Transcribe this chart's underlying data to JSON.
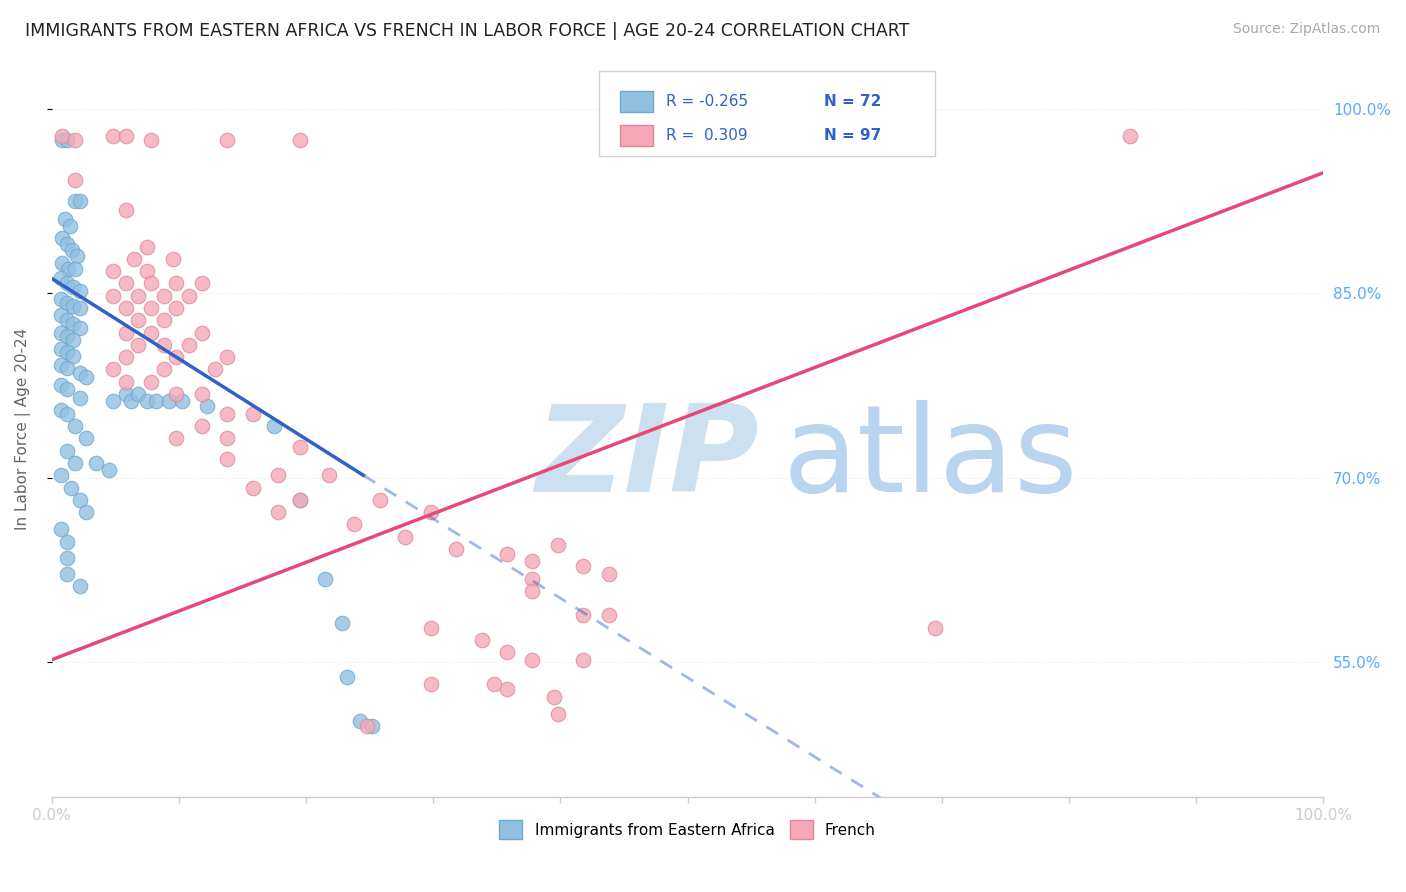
{
  "title": "IMMIGRANTS FROM EASTERN AFRICA VS FRENCH IN LABOR FORCE | AGE 20-24 CORRELATION CHART",
  "source": "Source: ZipAtlas.com",
  "ylabel": "In Labor Force | Age 20-24",
  "y_tick_labels": [
    "55.0%",
    "70.0%",
    "85.0%",
    "100.0%"
  ],
  "y_tick_positions": [
    0.55,
    0.7,
    0.85,
    1.0
  ],
  "ylim": [
    0.44,
    1.04
  ],
  "xlim": [
    0.0,
    1.0
  ],
  "blue_scatter": [
    [
      0.008,
      0.975
    ],
    [
      0.012,
      0.975
    ],
    [
      0.018,
      0.925
    ],
    [
      0.022,
      0.925
    ],
    [
      0.01,
      0.91
    ],
    [
      0.014,
      0.905
    ],
    [
      0.008,
      0.895
    ],
    [
      0.012,
      0.89
    ],
    [
      0.016,
      0.885
    ],
    [
      0.02,
      0.88
    ],
    [
      0.008,
      0.875
    ],
    [
      0.013,
      0.87
    ],
    [
      0.018,
      0.87
    ],
    [
      0.007,
      0.862
    ],
    [
      0.012,
      0.858
    ],
    [
      0.017,
      0.855
    ],
    [
      0.022,
      0.852
    ],
    [
      0.007,
      0.845
    ],
    [
      0.012,
      0.842
    ],
    [
      0.017,
      0.84
    ],
    [
      0.022,
      0.838
    ],
    [
      0.007,
      0.832
    ],
    [
      0.012,
      0.828
    ],
    [
      0.017,
      0.825
    ],
    [
      0.022,
      0.822
    ],
    [
      0.007,
      0.818
    ],
    [
      0.012,
      0.815
    ],
    [
      0.017,
      0.812
    ],
    [
      0.007,
      0.805
    ],
    [
      0.012,
      0.802
    ],
    [
      0.017,
      0.799
    ],
    [
      0.007,
      0.792
    ],
    [
      0.012,
      0.789
    ],
    [
      0.022,
      0.785
    ],
    [
      0.027,
      0.782
    ],
    [
      0.007,
      0.775
    ],
    [
      0.012,
      0.772
    ],
    [
      0.022,
      0.765
    ],
    [
      0.007,
      0.755
    ],
    [
      0.012,
      0.752
    ],
    [
      0.018,
      0.742
    ],
    [
      0.027,
      0.732
    ],
    [
      0.012,
      0.722
    ],
    [
      0.018,
      0.712
    ],
    [
      0.007,
      0.702
    ],
    [
      0.015,
      0.692
    ],
    [
      0.022,
      0.682
    ],
    [
      0.027,
      0.672
    ],
    [
      0.007,
      0.658
    ],
    [
      0.012,
      0.648
    ],
    [
      0.012,
      0.635
    ],
    [
      0.012,
      0.622
    ],
    [
      0.022,
      0.612
    ],
    [
      0.035,
      0.712
    ],
    [
      0.045,
      0.706
    ],
    [
      0.048,
      0.762
    ],
    [
      0.058,
      0.768
    ],
    [
      0.062,
      0.762
    ],
    [
      0.068,
      0.768
    ],
    [
      0.075,
      0.762
    ],
    [
      0.082,
      0.762
    ],
    [
      0.092,
      0.762
    ],
    [
      0.102,
      0.762
    ],
    [
      0.122,
      0.758
    ],
    [
      0.175,
      0.742
    ],
    [
      0.195,
      0.682
    ],
    [
      0.215,
      0.618
    ],
    [
      0.228,
      0.582
    ],
    [
      0.232,
      0.538
    ],
    [
      0.242,
      0.502
    ],
    [
      0.252,
      0.498
    ]
  ],
  "pink_scatter": [
    [
      0.008,
      0.978
    ],
    [
      0.018,
      0.975
    ],
    [
      0.048,
      0.978
    ],
    [
      0.058,
      0.978
    ],
    [
      0.078,
      0.975
    ],
    [
      0.138,
      0.975
    ],
    [
      0.195,
      0.975
    ],
    [
      0.848,
      0.978
    ],
    [
      0.018,
      0.942
    ],
    [
      0.058,
      0.918
    ],
    [
      0.075,
      0.888
    ],
    [
      0.065,
      0.878
    ],
    [
      0.095,
      0.878
    ],
    [
      0.048,
      0.868
    ],
    [
      0.075,
      0.868
    ],
    [
      0.058,
      0.858
    ],
    [
      0.078,
      0.858
    ],
    [
      0.098,
      0.858
    ],
    [
      0.118,
      0.858
    ],
    [
      0.048,
      0.848
    ],
    [
      0.068,
      0.848
    ],
    [
      0.088,
      0.848
    ],
    [
      0.108,
      0.848
    ],
    [
      0.058,
      0.838
    ],
    [
      0.078,
      0.838
    ],
    [
      0.098,
      0.838
    ],
    [
      0.068,
      0.828
    ],
    [
      0.088,
      0.828
    ],
    [
      0.058,
      0.818
    ],
    [
      0.078,
      0.818
    ],
    [
      0.118,
      0.818
    ],
    [
      0.068,
      0.808
    ],
    [
      0.088,
      0.808
    ],
    [
      0.108,
      0.808
    ],
    [
      0.058,
      0.798
    ],
    [
      0.098,
      0.798
    ],
    [
      0.138,
      0.798
    ],
    [
      0.048,
      0.788
    ],
    [
      0.088,
      0.788
    ],
    [
      0.128,
      0.788
    ],
    [
      0.058,
      0.778
    ],
    [
      0.078,
      0.778
    ],
    [
      0.098,
      0.768
    ],
    [
      0.118,
      0.768
    ],
    [
      0.138,
      0.752
    ],
    [
      0.158,
      0.752
    ],
    [
      0.118,
      0.742
    ],
    [
      0.098,
      0.732
    ],
    [
      0.138,
      0.732
    ],
    [
      0.195,
      0.725
    ],
    [
      0.138,
      0.715
    ],
    [
      0.178,
      0.702
    ],
    [
      0.218,
      0.702
    ],
    [
      0.158,
      0.692
    ],
    [
      0.195,
      0.682
    ],
    [
      0.258,
      0.682
    ],
    [
      0.178,
      0.672
    ],
    [
      0.298,
      0.672
    ],
    [
      0.238,
      0.662
    ],
    [
      0.278,
      0.652
    ],
    [
      0.318,
      0.642
    ],
    [
      0.358,
      0.638
    ],
    [
      0.378,
      0.632
    ],
    [
      0.378,
      0.618
    ],
    [
      0.398,
      0.645
    ],
    [
      0.418,
      0.628
    ],
    [
      0.438,
      0.622
    ],
    [
      0.378,
      0.608
    ],
    [
      0.418,
      0.588
    ],
    [
      0.438,
      0.588
    ],
    [
      0.298,
      0.578
    ],
    [
      0.338,
      0.568
    ],
    [
      0.358,
      0.558
    ],
    [
      0.378,
      0.552
    ],
    [
      0.418,
      0.552
    ],
    [
      0.358,
      0.528
    ],
    [
      0.395,
      0.522
    ],
    [
      0.298,
      0.532
    ],
    [
      0.348,
      0.532
    ],
    [
      0.695,
      0.578
    ],
    [
      0.398,
      0.508
    ],
    [
      0.248,
      0.498
    ]
  ],
  "blue_line_solid": [
    [
      0.0,
      0.862
    ],
    [
      0.245,
      0.702
    ]
  ],
  "blue_line_dashed": [
    [
      0.245,
      0.702
    ],
    [
      1.0,
      0.215
    ]
  ],
  "pink_line": [
    [
      0.0,
      0.552
    ],
    [
      1.0,
      0.948
    ]
  ],
  "background_color": "#ffffff",
  "grid_color": "#e8e8e8",
  "scatter_blue_color": "#92c0e0",
  "scatter_blue_edge": "#6aaad0",
  "scatter_pink_color": "#f4a8b8",
  "scatter_pink_edge": "#e08898",
  "line_blue_color": "#3060c8",
  "line_pink_color": "#e84878",
  "watermark_zip_color": "#cce0f0",
  "watermark_atlas_color": "#b8d4ee",
  "tick_color": "#5ba8ff",
  "figsize": [
    14.06,
    8.92
  ],
  "dpi": 100
}
